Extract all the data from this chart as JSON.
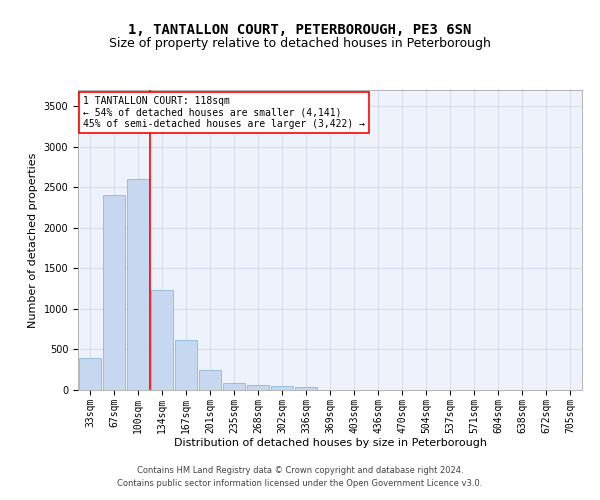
{
  "title": "1, TANTALLON COURT, PETERBOROUGH, PE3 6SN",
  "subtitle": "Size of property relative to detached houses in Peterborough",
  "xlabel": "Distribution of detached houses by size in Peterborough",
  "ylabel": "Number of detached properties",
  "footer_line1": "Contains HM Land Registry data © Crown copyright and database right 2024.",
  "footer_line2": "Contains public sector information licensed under the Open Government Licence v3.0.",
  "annotation_line1": "1 TANTALLON COURT: 118sqm",
  "annotation_line2": "← 54% of detached houses are smaller (4,141)",
  "annotation_line3": "45% of semi-detached houses are larger (3,422) →",
  "bar_labels": [
    "33sqm",
    "67sqm",
    "100sqm",
    "134sqm",
    "167sqm",
    "201sqm",
    "235sqm",
    "268sqm",
    "302sqm",
    "336sqm",
    "369sqm",
    "403sqm",
    "436sqm",
    "470sqm",
    "504sqm",
    "537sqm",
    "571sqm",
    "604sqm",
    "638sqm",
    "672sqm",
    "705sqm"
  ],
  "bar_values": [
    390,
    2400,
    2600,
    1230,
    620,
    250,
    90,
    60,
    50,
    40,
    0,
    0,
    0,
    0,
    0,
    0,
    0,
    0,
    0,
    0,
    0
  ],
  "bar_color": "#c5d8f0",
  "bar_edge_color": "#7bafd4",
  "red_line_x": 2.5,
  "ylim": [
    0,
    3700
  ],
  "yticks": [
    0,
    500,
    1000,
    1500,
    2000,
    2500,
    3000,
    3500
  ],
  "grid_color": "#d0d8e8",
  "background_color": "#eef2fb",
  "title_fontsize": 10,
  "subtitle_fontsize": 9,
  "axis_label_fontsize": 8,
  "tick_fontsize": 7,
  "footer_fontsize": 6,
  "annotation_fontsize": 7
}
